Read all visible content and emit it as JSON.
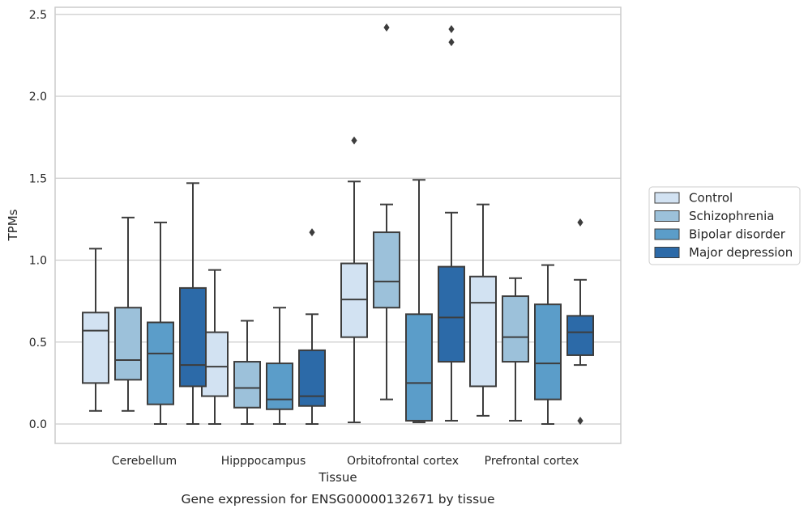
{
  "chart_data": {
    "type": "boxplot",
    "title": "",
    "caption": "Gene expression for ENSG00000132671 by tissue",
    "xlabel": "Tissue",
    "ylabel": "TPMs",
    "ylim": [
      -0.12,
      2.55
    ],
    "yticks": [
      "0.0",
      "0.5",
      "1.0",
      "1.5",
      "2.0",
      "2.5"
    ],
    "grid": "horizontal",
    "legend_position": "right",
    "categories": [
      "Cerebellum",
      "Hipppocampus",
      "Orbitofrontal cortex",
      "Prefrontal cortex"
    ],
    "series": [
      {
        "name": "Control",
        "color": "#d2e2f2",
        "boxes": [
          {
            "whisker_low": 0.08,
            "q1": 0.25,
            "median": 0.57,
            "q3": 0.68,
            "whisker_high": 1.07,
            "outliers": []
          },
          {
            "whisker_low": 0.0,
            "q1": 0.17,
            "median": 0.35,
            "q3": 0.56,
            "whisker_high": 0.94,
            "outliers": []
          },
          {
            "whisker_low": 0.01,
            "q1": 0.53,
            "median": 0.76,
            "q3": 0.98,
            "whisker_high": 1.48,
            "outliers": [
              1.73
            ]
          },
          {
            "whisker_low": 0.05,
            "q1": 0.23,
            "median": 0.74,
            "q3": 0.9,
            "whisker_high": 1.34,
            "outliers": []
          }
        ]
      },
      {
        "name": "Schizophrenia",
        "color": "#9cc1da",
        "boxes": [
          {
            "whisker_low": 0.08,
            "q1": 0.27,
            "median": 0.39,
            "q3": 0.71,
            "whisker_high": 1.26,
            "outliers": []
          },
          {
            "whisker_low": 0.0,
            "q1": 0.1,
            "median": 0.22,
            "q3": 0.38,
            "whisker_high": 0.63,
            "outliers": []
          },
          {
            "whisker_low": 0.15,
            "q1": 0.71,
            "median": 0.87,
            "q3": 1.17,
            "whisker_high": 1.34,
            "outliers": [
              2.42
            ]
          },
          {
            "whisker_low": 0.02,
            "q1": 0.38,
            "median": 0.53,
            "q3": 0.78,
            "whisker_high": 0.89,
            "outliers": []
          }
        ]
      },
      {
        "name": "Bipolar disorder",
        "color": "#5b9dc9",
        "boxes": [
          {
            "whisker_low": 0.0,
            "q1": 0.12,
            "median": 0.43,
            "q3": 0.62,
            "whisker_high": 1.23,
            "outliers": []
          },
          {
            "whisker_low": 0.0,
            "q1": 0.09,
            "median": 0.15,
            "q3": 0.37,
            "whisker_high": 0.71,
            "outliers": []
          },
          {
            "whisker_low": 0.01,
            "q1": 0.02,
            "median": 0.25,
            "q3": 0.67,
            "whisker_high": 1.49,
            "outliers": []
          },
          {
            "whisker_low": 0.0,
            "q1": 0.15,
            "median": 0.37,
            "q3": 0.73,
            "whisker_high": 0.97,
            "outliers": []
          }
        ]
      },
      {
        "name": "Major depression",
        "color": "#2c6aa8",
        "boxes": [
          {
            "whisker_low": 0.0,
            "q1": 0.23,
            "median": 0.36,
            "q3": 0.83,
            "whisker_high": 1.47,
            "outliers": []
          },
          {
            "whisker_low": 0.0,
            "q1": 0.11,
            "median": 0.17,
            "q3": 0.45,
            "whisker_high": 0.67,
            "outliers": [
              1.17
            ]
          },
          {
            "whisker_low": 0.02,
            "q1": 0.38,
            "median": 0.65,
            "q3": 0.96,
            "whisker_high": 1.29,
            "outliers": [
              2.33,
              2.41
            ]
          },
          {
            "whisker_low": 0.36,
            "q1": 0.42,
            "median": 0.56,
            "q3": 0.66,
            "whisker_high": 0.88,
            "outliers": [
              0.02,
              1.23
            ]
          }
        ]
      }
    ]
  }
}
